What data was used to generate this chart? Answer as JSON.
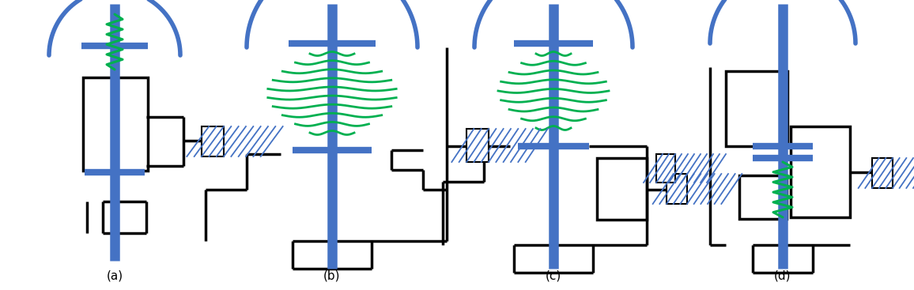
{
  "blue": "#4472C4",
  "green": "#00B050",
  "black": "#000000",
  "white": "#FFFFFF",
  "bg": "#FFFFFF",
  "labels": [
    "(a)",
    "(b)",
    "(c)",
    "(d)"
  ],
  "label_fs": 11,
  "figsize": [
    11.56,
    3.67
  ],
  "dpi": 100
}
